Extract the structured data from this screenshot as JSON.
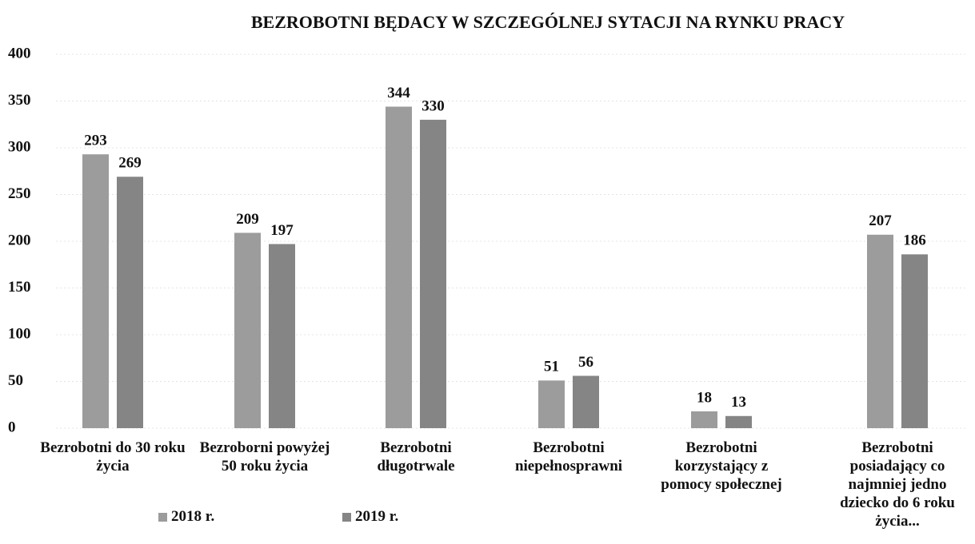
{
  "chart_data": {
    "type": "bar",
    "title": "BEZROBOTNI BĘDACY W SZCZEGÓLNEJ SYTACJI NA RYNKU PRACY",
    "categories": [
      "Bezrobotni do 30 roku życia",
      "Bezroborni powyżej 50 roku życia",
      "Bezrobotni długotrwale",
      "Bezrobotni niepełnosprawni",
      "Bezrobotni korzystający z pomocy społecznej",
      "Bezrobotni posiadający co najmniej jedno dziecko do 6 roku życia..."
    ],
    "series": [
      {
        "name": "2018 r.",
        "color": "#9c9c9c",
        "values": [
          293,
          209,
          344,
          51,
          18,
          207
        ]
      },
      {
        "name": "2019 r.",
        "color": "#858585",
        "values": [
          269,
          197,
          330,
          56,
          13,
          186
        ]
      }
    ],
    "ylim": [
      0,
      400
    ],
    "yticks": [
      0,
      50,
      100,
      150,
      200,
      250,
      300,
      350,
      400
    ],
    "grid": true,
    "legend": "bottom"
  }
}
